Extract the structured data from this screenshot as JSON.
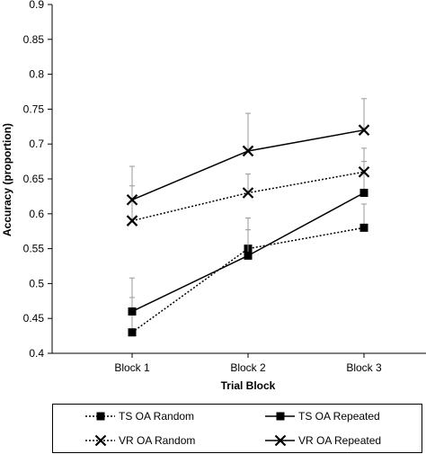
{
  "chart_data": {
    "type": "line",
    "xlabel": "Trial Block",
    "ylabel": "Accuracy (proportion)",
    "categories": [
      "Block 1",
      "Block 2",
      "Block 3"
    ],
    "ylim": [
      0.4,
      0.9
    ],
    "yticks": [
      "0.4",
      "0.45",
      "0.5",
      "0.55",
      "0.6",
      "0.65",
      "0.7",
      "0.75",
      "0.8",
      "0.85",
      "0.9"
    ],
    "grid": false,
    "legend_position": "bottom",
    "series": [
      {
        "name": "TS OA Random",
        "marker": "square",
        "line_style": "dotted",
        "values": [
          0.43,
          0.55,
          0.58
        ],
        "error_upper": [
          0.48,
          0.594,
          0.614
        ]
      },
      {
        "name": "TS OA Repeated",
        "marker": "square",
        "line_style": "solid",
        "values": [
          0.46,
          0.54,
          0.63
        ],
        "error_upper": [
          0.508,
          0.577,
          0.675
        ]
      },
      {
        "name": "VR OA Random",
        "marker": "x",
        "line_style": "dotted",
        "values": [
          0.59,
          0.63,
          0.66
        ],
        "error_upper": [
          0.64,
          0.657,
          0.694
        ]
      },
      {
        "name": "VR OA Repeated",
        "marker": "x",
        "line_style": "solid",
        "values": [
          0.62,
          0.69,
          0.72
        ],
        "error_upper": [
          0.668,
          0.744,
          0.765
        ]
      }
    ],
    "legend_order": [
      0,
      1,
      2,
      3
    ],
    "colors": {
      "line": "#000000",
      "error_bar": "#999999"
    }
  }
}
